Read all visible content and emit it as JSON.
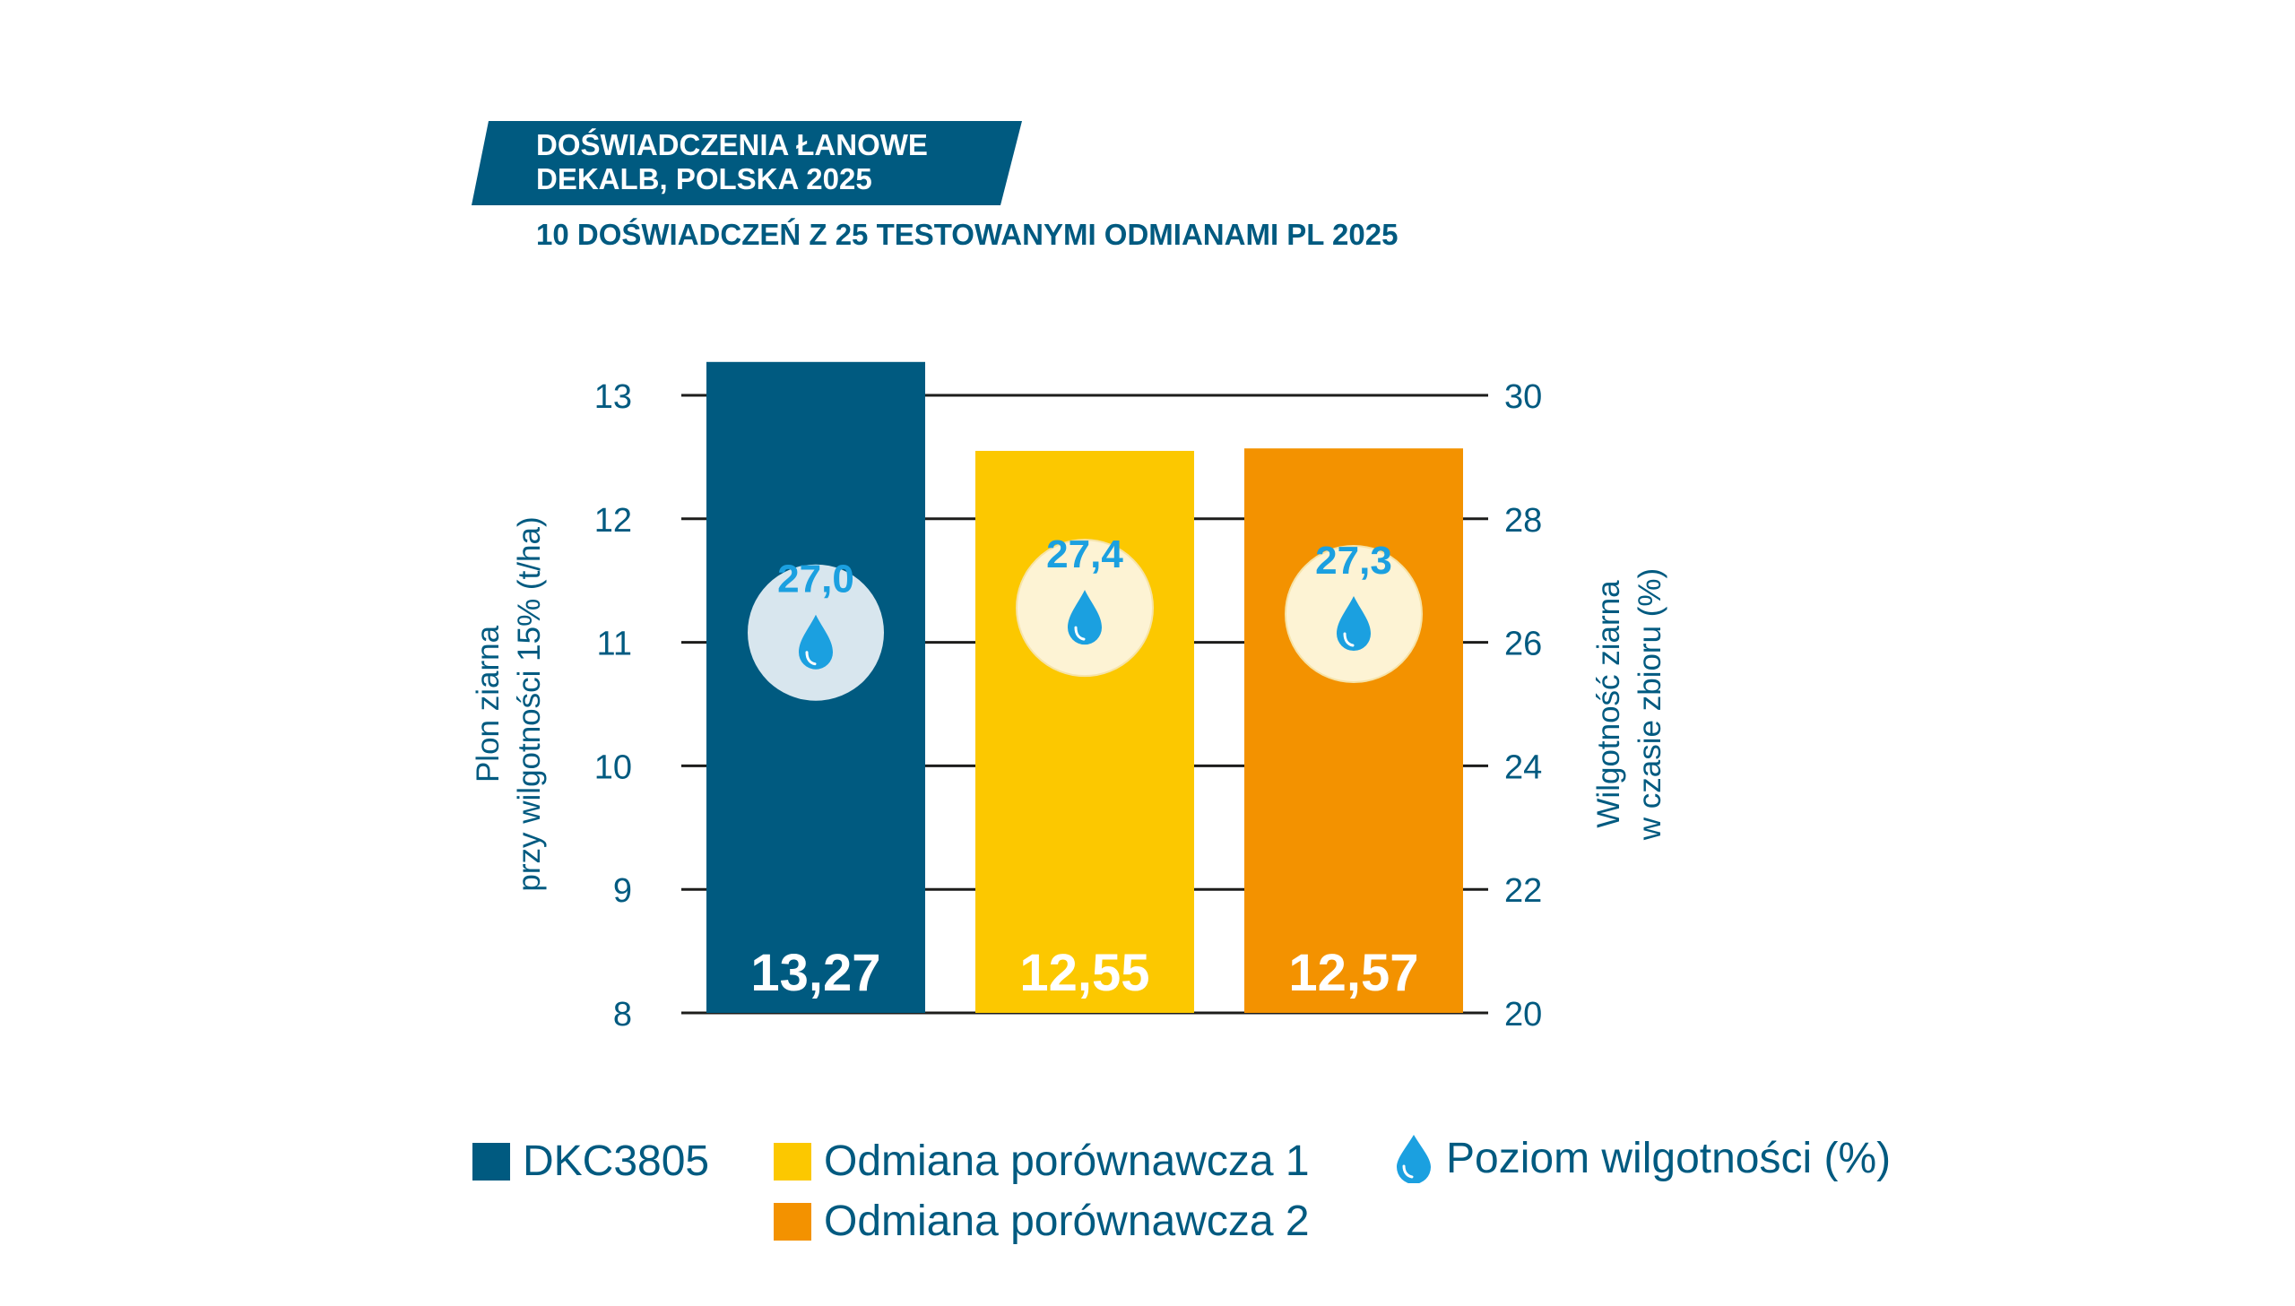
{
  "header": {
    "title_line1": "DOŚWIADCZENIA ŁANOWE",
    "title_line2": "DEKALB, POLSKA 2025",
    "subtitle": "10 DOŚWIADCZEŃ Z 25 TESTOWANYMI ODMIANAMI PL 2025"
  },
  "colors": {
    "navy": "#005a80",
    "yellow": "#fcc800",
    "orange": "#f39200",
    "drop": "#1ba0e0"
  },
  "chart_data": {
    "type": "bar",
    "categories": [
      "DKC3805",
      "Odmiana porównawcza 1",
      "Odmiana porównawcza 2"
    ],
    "series": [
      {
        "name": "Plon ziarna",
        "values": [
          13.27,
          12.55,
          12.57
        ],
        "labels": [
          "13,27",
          "12,55",
          "12,57"
        ],
        "axis": "left"
      },
      {
        "name": "Poziom wilgotności (%)",
        "values": [
          27.0,
          27.4,
          27.3
        ],
        "labels": [
          "27,0",
          "27,4",
          "27,3"
        ],
        "axis": "right"
      }
    ],
    "bar_colors": [
      "#005a80",
      "#fcc800",
      "#f39200"
    ],
    "ylabel": [
      "Plon ziarna",
      "przy wilgotności 15% (t/ha)"
    ],
    "ylim": [
      8,
      13
    ],
    "yticks": [
      "8",
      "9",
      "10",
      "11",
      "12",
      "13"
    ],
    "y2label": [
      "Wilgotność ziarna",
      "w czasie zbioru (%)"
    ],
    "y2lim": [
      20,
      30
    ],
    "y2ticks": [
      "20",
      "22",
      "24",
      "26",
      "28",
      "30"
    ],
    "grid": true,
    "legend_position": "bottom"
  },
  "legend": {
    "item1": "DKC3805",
    "item2": "Odmiana porównawcza 1",
    "item3": "Odmiana porównawcza 2",
    "item4": "Poziom wilgotności (%)"
  }
}
